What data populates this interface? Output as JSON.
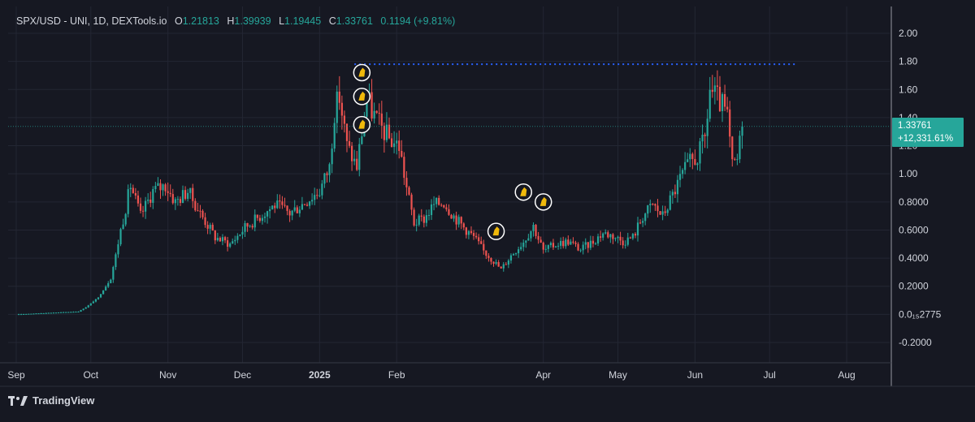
{
  "header": {
    "symbol": "SPX/USD - UNI, 1D, DEXTools.io",
    "open_label": "O",
    "open": "1.21813",
    "high_label": "H",
    "high": "1.39939",
    "low_label": "L",
    "low": "1.19445",
    "close_label": "C",
    "close": "1.33761",
    "change": "0.1194 (+9.81%)"
  },
  "price_tag": {
    "price": "1.33761",
    "percent": "+12,331.61%"
  },
  "footer": {
    "brand": "TradingView"
  },
  "colors": {
    "background": "#161822",
    "up": "#26a69a",
    "down": "#ef5350",
    "dotted_line": "#2962ff",
    "grid": "#232633",
    "axis_text": "#d1d4dc"
  },
  "chart_data": {
    "type": "candlestick",
    "title": "",
    "y_tick_labels": [
      "2.00",
      "1.80",
      "1.60",
      "1.40",
      "1.20",
      "1.00",
      "0.8000",
      "0.6000",
      "0.4000",
      "0.2000",
      "0.0₁₅2775",
      "-0.2000"
    ],
    "y_ticks": [
      2.0,
      1.8,
      1.6,
      1.4,
      1.2,
      1.0,
      0.8,
      0.6,
      0.4,
      0.2,
      0.0,
      -0.2
    ],
    "ylim": [
      -0.3,
      2.1
    ],
    "x_tick_labels": [
      "Sep",
      "Oct",
      "Nov",
      "Dec",
      "2025",
      "Feb",
      "Apr",
      "May",
      "Jun",
      "Jul",
      "Aug"
    ],
    "x_tick_days": [
      0,
      30,
      61,
      91,
      122,
      153,
      212,
      242,
      273,
      303,
      334
    ],
    "resistance_level": 1.78,
    "resistance_start_day": 136,
    "resistance_end_day": 314,
    "current_price": 1.33761,
    "markers": [
      {
        "day": 139,
        "price": 1.72
      },
      {
        "day": 139,
        "price": 1.55
      },
      {
        "day": 139,
        "price": 1.35
      },
      {
        "day": 204,
        "price": 0.87
      },
      {
        "day": 212,
        "price": 0.8
      },
      {
        "day": 193,
        "price": 0.59
      }
    ],
    "anchors": [
      [
        0,
        0.0
      ],
      [
        25,
        0.02
      ],
      [
        28,
        0.05
      ],
      [
        33,
        0.12
      ],
      [
        38,
        0.25
      ],
      [
        42,
        0.6
      ],
      [
        46,
        0.92
      ],
      [
        50,
        0.7
      ],
      [
        55,
        0.88
      ],
      [
        60,
        0.92
      ],
      [
        64,
        0.8
      ],
      [
        69,
        0.88
      ],
      [
        74,
        0.72
      ],
      [
        80,
        0.55
      ],
      [
        86,
        0.5
      ],
      [
        92,
        0.62
      ],
      [
        98,
        0.7
      ],
      [
        104,
        0.78
      ],
      [
        110,
        0.72
      ],
      [
        116,
        0.8
      ],
      [
        122,
        0.88
      ],
      [
        126,
        1.05
      ],
      [
        128,
        1.45
      ],
      [
        130,
        1.55
      ],
      [
        133,
        1.2
      ],
      [
        137,
        1.05
      ],
      [
        139,
        1.3
      ],
      [
        141,
        1.55
      ],
      [
        143,
        1.45
      ],
      [
        146,
        1.35
      ],
      [
        150,
        1.25
      ],
      [
        154,
        1.2
      ],
      [
        157,
        0.9
      ],
      [
        160,
        0.65
      ],
      [
        164,
        0.68
      ],
      [
        168,
        0.78
      ],
      [
        172,
        0.8
      ],
      [
        176,
        0.7
      ],
      [
        180,
        0.62
      ],
      [
        184,
        0.55
      ],
      [
        188,
        0.45
      ],
      [
        192,
        0.38
      ],
      [
        195,
        0.32
      ],
      [
        199,
        0.42
      ],
      [
        204,
        0.52
      ],
      [
        208,
        0.63
      ],
      [
        212,
        0.45
      ],
      [
        217,
        0.5
      ],
      [
        222,
        0.52
      ],
      [
        227,
        0.46
      ],
      [
        232,
        0.52
      ],
      [
        236,
        0.58
      ],
      [
        240,
        0.56
      ],
      [
        244,
        0.52
      ],
      [
        248,
        0.55
      ],
      [
        252,
        0.7
      ],
      [
        256,
        0.78
      ],
      [
        260,
        0.7
      ],
      [
        264,
        0.85
      ],
      [
        268,
        1.0
      ],
      [
        271,
        1.08
      ],
      [
        274,
        1.12
      ],
      [
        277,
        1.25
      ],
      [
        279,
        1.6
      ],
      [
        281,
        1.55
      ],
      [
        284,
        1.48
      ],
      [
        286,
        1.4
      ],
      [
        288,
        1.05
      ],
      [
        290,
        1.1
      ],
      [
        292,
        1.33761
      ]
    ],
    "seed": 17
  }
}
